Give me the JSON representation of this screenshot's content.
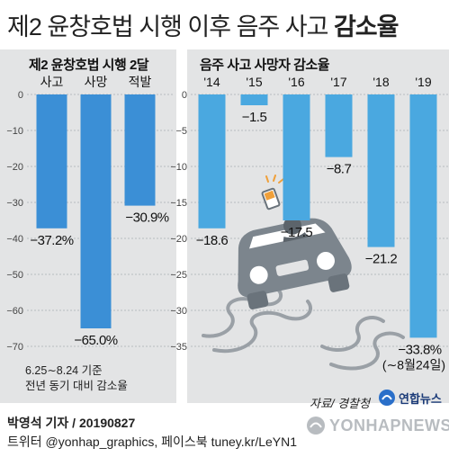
{
  "title_regular": "제2 윤창호법 시행 이후 음주 사고 ",
  "title_bold": "감소율",
  "chart_data": [
    {
      "type": "bar",
      "title": "제2 윤창호법 시행 2달",
      "categories": [
        "사고",
        "사망",
        "적발"
      ],
      "values": [
        -37.2,
        -65.0,
        -30.9
      ],
      "value_labels": [
        "−37.2%",
        "−65.0%",
        "−30.9%"
      ],
      "yticks": [
        0,
        -10,
        -20,
        -30,
        -40,
        -50,
        -60,
        -70
      ],
      "ytick_labels": [
        "0",
        "−10",
        "−20",
        "−30",
        "−40",
        "−50",
        "−60",
        "−70"
      ],
      "ylim": [
        -70,
        0
      ],
      "note_lines": [
        "6.25∼8.24 기준",
        "전년 동기 대비 감소율"
      ],
      "bar_color": "#3b8fd6",
      "grid": true
    },
    {
      "type": "bar",
      "title": "음주 사고 사망자 감소율",
      "categories": [
        "'14",
        "'15",
        "'16",
        "'17",
        "'18",
        "'19"
      ],
      "values": [
        -18.6,
        -1.5,
        -17.5,
        -8.7,
        -21.2,
        -33.8
      ],
      "value_labels": [
        "−18.6",
        "−1.5",
        "−17.5",
        "−8.7",
        "−21.2",
        "−33.8%"
      ],
      "yticks": [
        0,
        -5,
        -10,
        -15,
        -20,
        -25,
        -30,
        -35
      ],
      "ytick_labels": [
        "0",
        "−5",
        "−10",
        "−15",
        "−20",
        "−25",
        "−30",
        "−35"
      ],
      "ylim": [
        -35,
        0
      ],
      "annotation": "(∼8월24일)",
      "bar_color": "#4aa8e0",
      "grid": true
    }
  ],
  "source": "자료/ 경찰청",
  "logo_text": "연합뉴스",
  "byline": "박영석 기자 / 20190827",
  "social": "트위터 @yonhap_graphics, 페이스북 tuney.kr/LeYN1",
  "watermark": "YONHAPNEWS"
}
